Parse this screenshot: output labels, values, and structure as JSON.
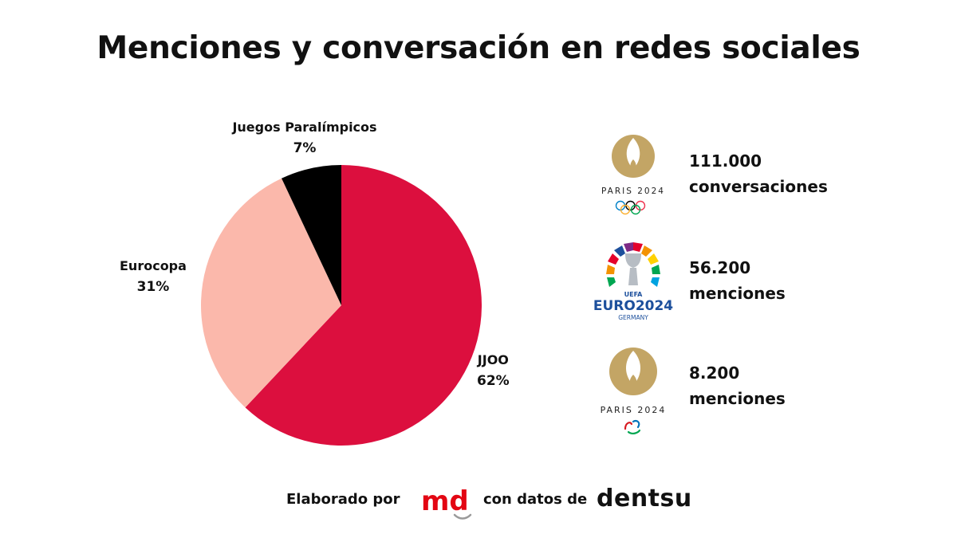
{
  "title": "Menciones y conversación en redes sociales",
  "chart_data": {
    "type": "pie",
    "categories": [
      "JJOO",
      "Eurocopa",
      "Juegos Paralímpicos"
    ],
    "values": [
      62,
      31,
      7
    ],
    "labels": [
      "62%",
      "31%",
      "7%"
    ],
    "colors": [
      "#dc0f3e",
      "#fbb8ab",
      "#000000"
    ]
  },
  "stats": [
    {
      "logo": "paris-2024-olympic-logo",
      "logo_text": "PARIS 2024",
      "number": "111.000",
      "label": "conversaciones"
    },
    {
      "logo": "uefa-euro-2024-logo",
      "logo_text": "EURO2024",
      "logo_sub_top": "UEFA",
      "logo_sub_bottom": "GERMANY",
      "number": "56.200",
      "label": "menciones"
    },
    {
      "logo": "paris-2024-paralympic-logo",
      "logo_text": "PARIS 2024",
      "number": "8.200",
      "label": "menciones"
    }
  ],
  "footer": {
    "prefix": "Elaborado por",
    "logo_text": "md",
    "middle": "con datos de",
    "brand": "dentsu"
  },
  "colors": {
    "gold": "#c3a565",
    "md_red": "#e30613",
    "euro_blue": "#1c4f9c"
  }
}
